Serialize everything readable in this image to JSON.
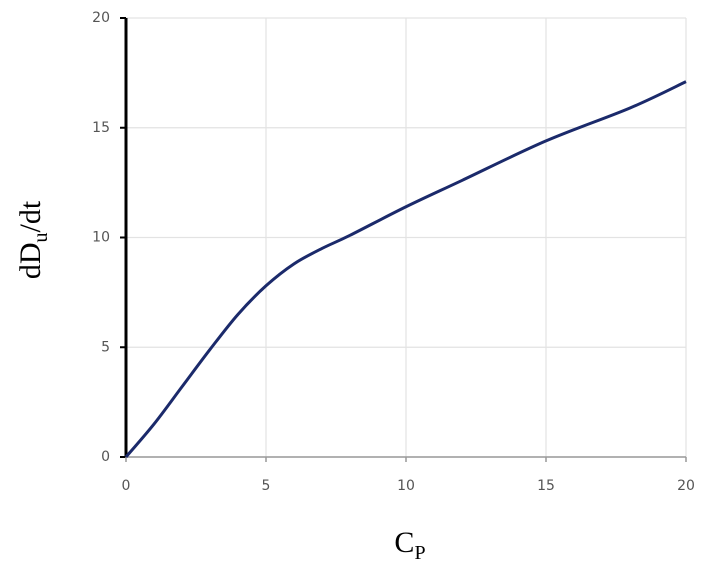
{
  "chart_data": {
    "type": "line",
    "xlabel": {
      "base": "C",
      "subscript": "P"
    },
    "ylabel": {
      "base": "dD",
      "subscript": "u",
      "suffix": "/dt"
    },
    "x": [
      0,
      1,
      2,
      3,
      4,
      5,
      6,
      7,
      8,
      10,
      12,
      15,
      18,
      20
    ],
    "series": [
      {
        "color": "#1b2a6b",
        "values": [
          0,
          1.5,
          3.2,
          4.9,
          6.5,
          7.8,
          8.8,
          9.5,
          10.1,
          11.4,
          12.6,
          14.4,
          15.9,
          17.1
        ]
      }
    ],
    "xlim": [
      0,
      20
    ],
    "xticks": [
      0,
      5,
      10,
      15,
      20
    ],
    "ylim": [
      0,
      20
    ],
    "yticks": [
      0,
      5,
      10,
      15,
      20
    ],
    "grid": true
  }
}
